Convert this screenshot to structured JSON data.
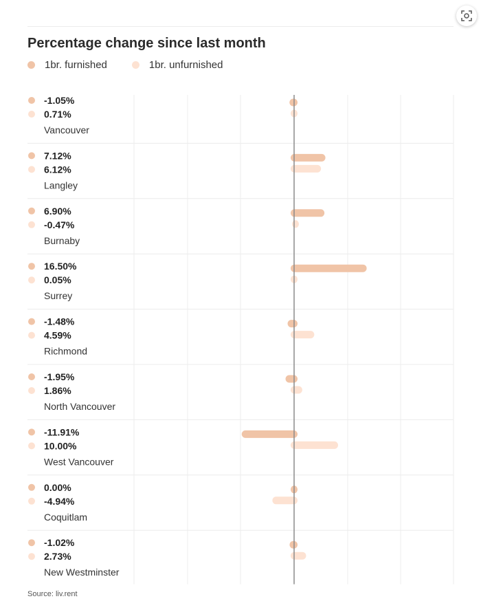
{
  "title": "Percentage change since last month",
  "source": "Source: liv.rent",
  "colors": {
    "furnished": "#f0c4a7",
    "unfurnished": "#fde2d2",
    "axis": "#8a8a8a",
    "grid": "#ececec"
  },
  "chart_data": {
    "type": "bar",
    "orientation": "horizontal",
    "title": "Percentage change since last month",
    "categories": [
      "Vancouver",
      "Langley",
      "Burnaby",
      "Surrey",
      "Richmond",
      "North Vancouver",
      "West Vancouver",
      "Coquitlam",
      "New Westminster"
    ],
    "series": [
      {
        "name": "1br. furnished",
        "values": [
          -1.05,
          7.12,
          6.9,
          16.5,
          -1.48,
          -1.95,
          -11.91,
          0.0,
          -1.02
        ],
        "labels": [
          "-1.05%",
          "7.12%",
          "6.90%",
          "16.50%",
          "-1.48%",
          "-1.95%",
          "-11.91%",
          "0.00%",
          "-1.02%"
        ],
        "color": "#f0c4a7"
      },
      {
        "name": "1br. unfurnished",
        "values": [
          0.71,
          6.12,
          -0.47,
          0.05,
          4.59,
          1.86,
          10.0,
          -4.94,
          2.73
        ],
        "labels": [
          "0.71%",
          "6.12%",
          "-0.47%",
          "0.05%",
          "4.59%",
          "1.86%",
          "10.00%",
          "-4.94%",
          "2.73%"
        ],
        "color": "#fde2d2"
      }
    ],
    "xlim": [
      -30,
      40
    ],
    "grid": true,
    "legend": "top-left"
  }
}
